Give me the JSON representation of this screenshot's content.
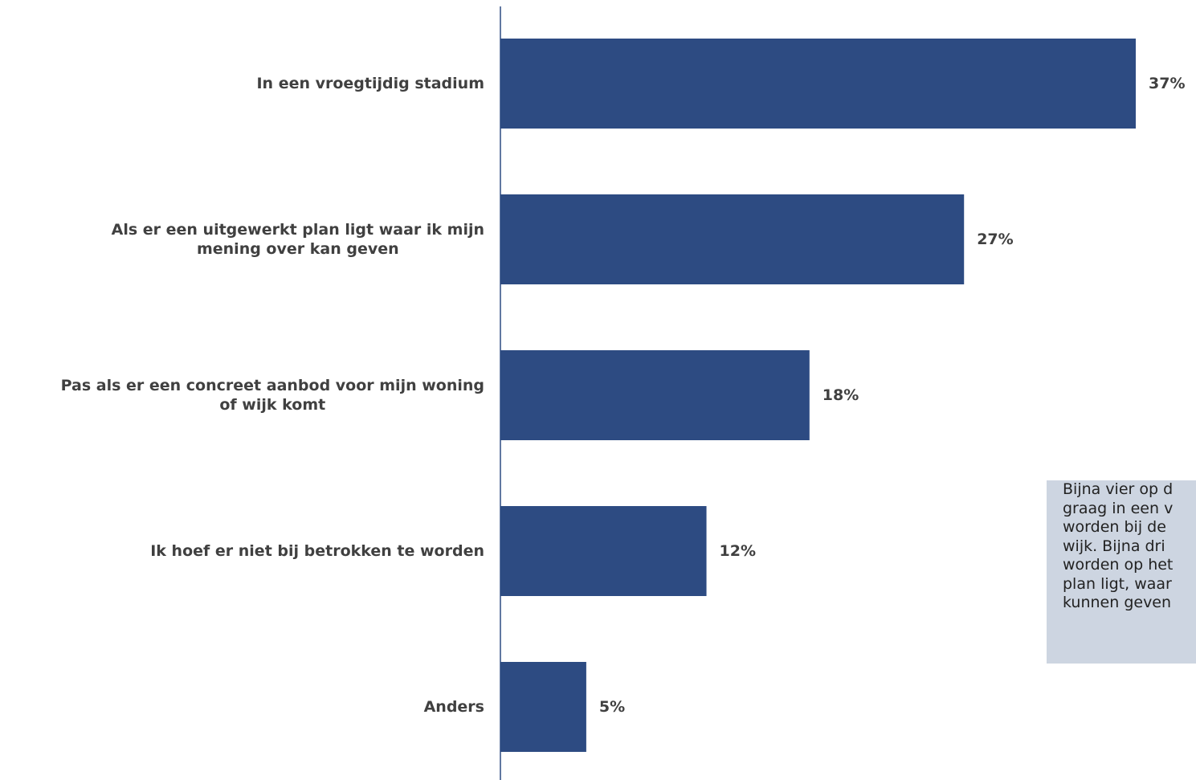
{
  "chart_data": {
    "type": "bar",
    "orientation": "horizontal",
    "categories": [
      "In een vroegtijdig stadium",
      "Als er een uitgewerkt plan ligt waar ik mijn\nmening over kan geven",
      "Pas als er een concreet aanbod voor mijn woning\nof wijk komt",
      "Ik hoef er niet bij betrokken te worden",
      "Anders"
    ],
    "values": [
      37,
      27,
      18,
      12,
      5
    ],
    "value_labels": [
      "37%",
      "27%",
      "18%",
      "12%",
      "5%"
    ],
    "color": "#2d4b82",
    "annotation": [
      "Bijna vier op d",
      "graag in een v",
      "worden bij de",
      "wijk. Bijna dri",
      "worden op het",
      "plan ligt, waar",
      "kunnen geven"
    ]
  }
}
